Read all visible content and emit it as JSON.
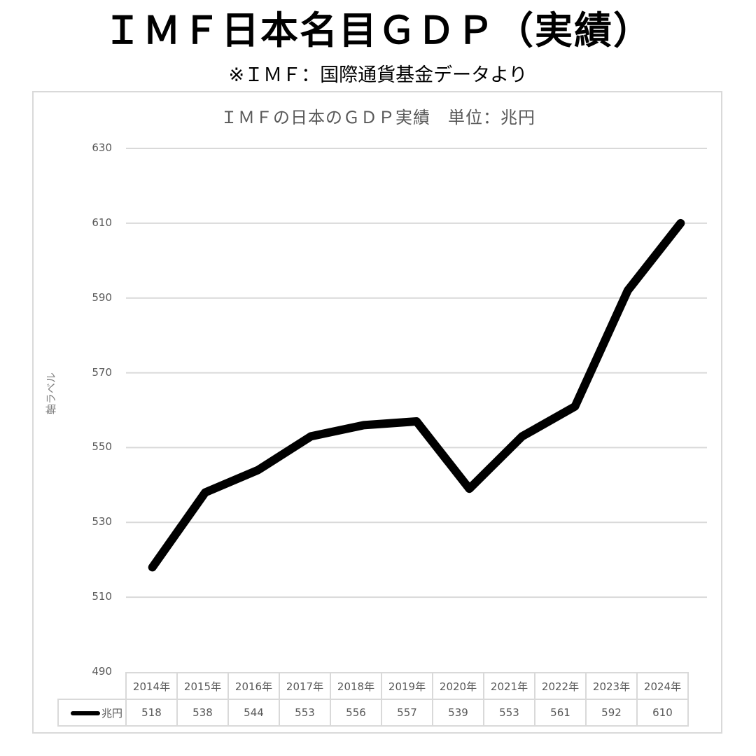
{
  "header": {
    "title": "ＩＭＦ日本名目ＧＤＰ（実績）",
    "subtitle": "※ＩＭＦ：国際通貨基金データより"
  },
  "chart_data": {
    "type": "line",
    "title": "ＩＭＦの日本のＧＤＰ実績　単位：兆円",
    "xlabel": "",
    "ylabel": "軸ラベル",
    "categories": [
      "2014年",
      "2015年",
      "2016年",
      "2017年",
      "2018年",
      "2019年",
      "2020年",
      "2021年",
      "2022年",
      "2023年",
      "2024年"
    ],
    "series": [
      {
        "name": "兆円",
        "color": "#000000",
        "values": [
          518,
          538,
          544,
          553,
          556,
          557,
          539,
          553,
          561,
          592,
          610
        ]
      }
    ],
    "ylim": [
      490,
      630
    ],
    "yticks": [
      "630",
      "610",
      "590",
      "570",
      "550",
      "530",
      "510",
      "490"
    ],
    "grid": true,
    "legend_position": "data-table",
    "data_table": true
  }
}
